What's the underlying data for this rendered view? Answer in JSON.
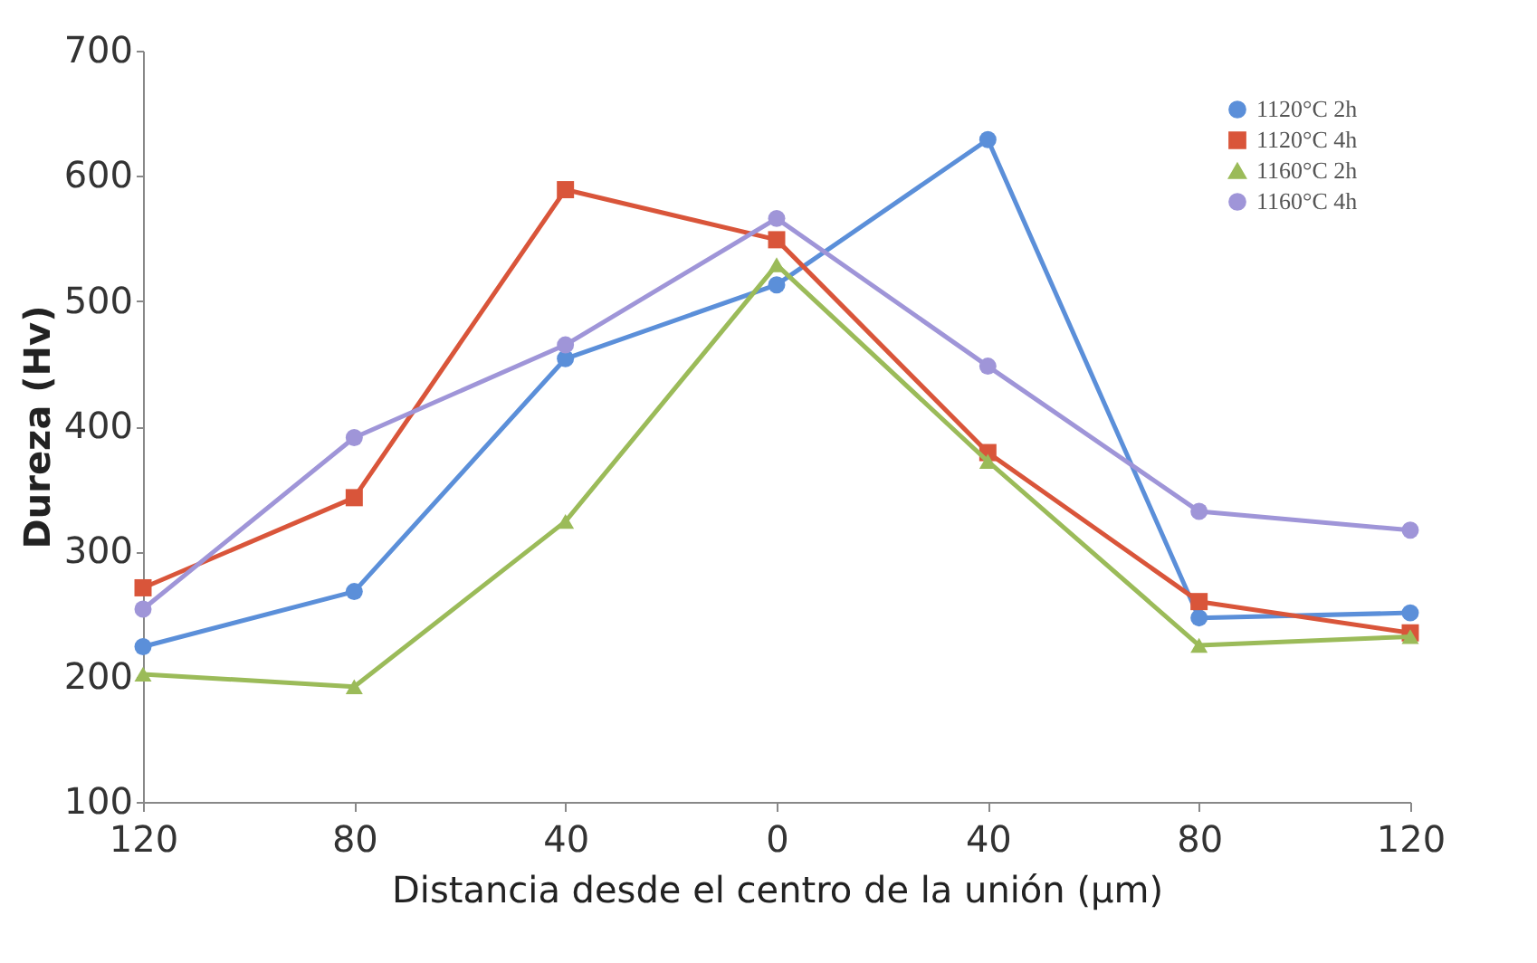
{
  "chart_data": {
    "type": "line",
    "xlabel": "Distancia desde el centro de la unión (µm)",
    "ylabel": "Dureza (Hv)",
    "categories": [
      "120",
      "80",
      "40",
      "0",
      "40",
      "80",
      "120"
    ],
    "series": [
      {
        "name": "1120°C  2h",
        "color": "#5b8fd9",
        "marker": "circle",
        "values": [
          224,
          268,
          454,
          513,
          629,
          247,
          251
        ]
      },
      {
        "name": "1120°C  4h",
        "color": "#d9553a",
        "marker": "square",
        "values": [
          271,
          343,
          589,
          549,
          379,
          260,
          235
        ]
      },
      {
        "name": "1160°C  2h",
        "color": "#9bbb59",
        "marker": "triangle",
        "values": [
          202,
          192,
          324,
          529,
          372,
          225,
          232
        ]
      },
      {
        "name": "1160°C  4h",
        "color": "#9f95d8",
        "marker": "circle",
        "values": [
          254,
          391,
          465,
          566,
          448,
          332,
          317
        ]
      }
    ],
    "ylim": [
      100,
      700
    ],
    "yticks": [
      100,
      200,
      300,
      400,
      500,
      600,
      700
    ],
    "grid": false,
    "legend": "top right"
  }
}
